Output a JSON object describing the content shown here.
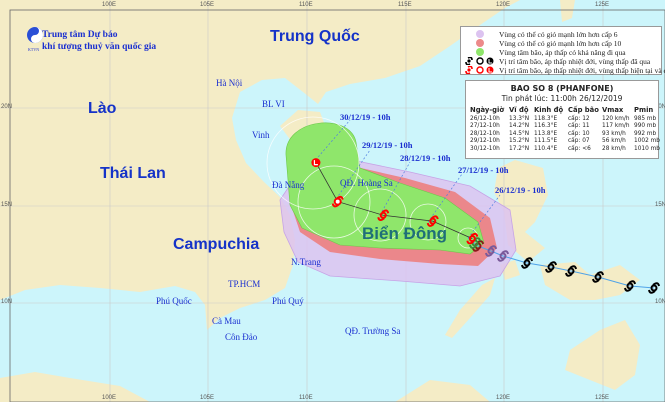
{
  "header": {
    "org_line1": "Trung tâm Dự báo",
    "org_line2": "khí tượng thuỷ văn quốc gia",
    "logo_text": "KTVN"
  },
  "axes": {
    "lon_ticks": [
      "100E",
      "105E",
      "110E",
      "115E",
      "120E",
      "125E"
    ],
    "lat_ticks": [
      "20N",
      "15N",
      "10N"
    ]
  },
  "countries": {
    "china": "Trung Quốc",
    "laos": "Lào",
    "thailand": "Thái Lan",
    "cambodia": "Campuchia",
    "sea": "Biển Đông"
  },
  "places": {
    "hanoi": "Hà Nội",
    "blvi": "BL VI",
    "vinh": "Vinh",
    "danang": "Đà Nẵng",
    "hoangsa": "QĐ. Hoàng Sa",
    "ntrang": "N.Trang",
    "hcm": "TP.HCM",
    "phuquoc": "Phú Quốc",
    "phuquy": "Phú Quý",
    "camau": "Cà Mau",
    "condao": "Côn Đảo",
    "truongsa": "QĐ. Trường Sa"
  },
  "legend": {
    "items": [
      {
        "label": "Vùng có thể có gió mạnh lớn hơn cấp 6",
        "color": "#dcc3f0"
      },
      {
        "label": "Vùng có thể có gió mạnh lớn hơn cấp 10",
        "color": "#ec8a8a"
      },
      {
        "label": "Vùng tâm bão, áp thấp có khả năng đi qua",
        "color": "#8fe66b"
      },
      {
        "label": "Vị trí tâm bão, áp thấp nhiệt đới, vùng thấp đã qua",
        "color": "#000000"
      },
      {
        "label": "Vị trí tâm bão, áp thấp nhiệt đới, vùng thấp hiện tại và dự báo",
        "color": "#ff0000"
      }
    ]
  },
  "bulletin": {
    "title": "BAO SO 8 (PHANFONE)",
    "issued": "Tin phát lúc: 11:00h 26/12/2019",
    "columns": [
      "Ngày-giờ",
      "Vĩ độ",
      "Kinh độ",
      "Cấp bão",
      "Vmax",
      "Pmin"
    ],
    "rows": [
      [
        "26/12-10h",
        "13.3°N",
        "118.3°E",
        "cấp: 12",
        "120 km/h",
        "985 mb"
      ],
      [
        "27/12-10h",
        "14.2°N",
        "116.3°E",
        "cấp: 11",
        "117 km/h",
        "990 mb"
      ],
      [
        "28/12-10h",
        "14.5°N",
        "113.8°E",
        "cấp: 10",
        "93 km/h",
        "992 mb"
      ],
      [
        "29/12-10h",
        "15.2°N",
        "111.5°E",
        "cấp: 07",
        "56 km/h",
        "1002 mb"
      ],
      [
        "30/12-10h",
        "17.2°N",
        "110.4°E",
        "cấp: <6",
        "28 km/h",
        "1010 mb"
      ]
    ]
  },
  "forecast_labels": [
    "26/12/19 - 10h",
    "27/12/19 - 10h",
    "28/12/19 - 10h",
    "29/12/19 - 10h",
    "30/12/19 - 10h"
  ],
  "track": {
    "forecast": [
      {
        "lat": 13.3,
        "lon": 118.3,
        "symbol": "typhoon"
      },
      {
        "lat": 14.2,
        "lon": 116.3,
        "symbol": "typhoon"
      },
      {
        "lat": 14.5,
        "lon": 113.8,
        "symbol": "typhoon"
      },
      {
        "lat": 15.2,
        "lon": 111.5,
        "symbol": "depression"
      },
      {
        "lat": 17.2,
        "lon": 110.4,
        "symbol": "low"
      }
    ],
    "past_colors": {
      "past": "#000000",
      "current": "#ff0000",
      "track_line": "#4fa3e8"
    }
  }
}
